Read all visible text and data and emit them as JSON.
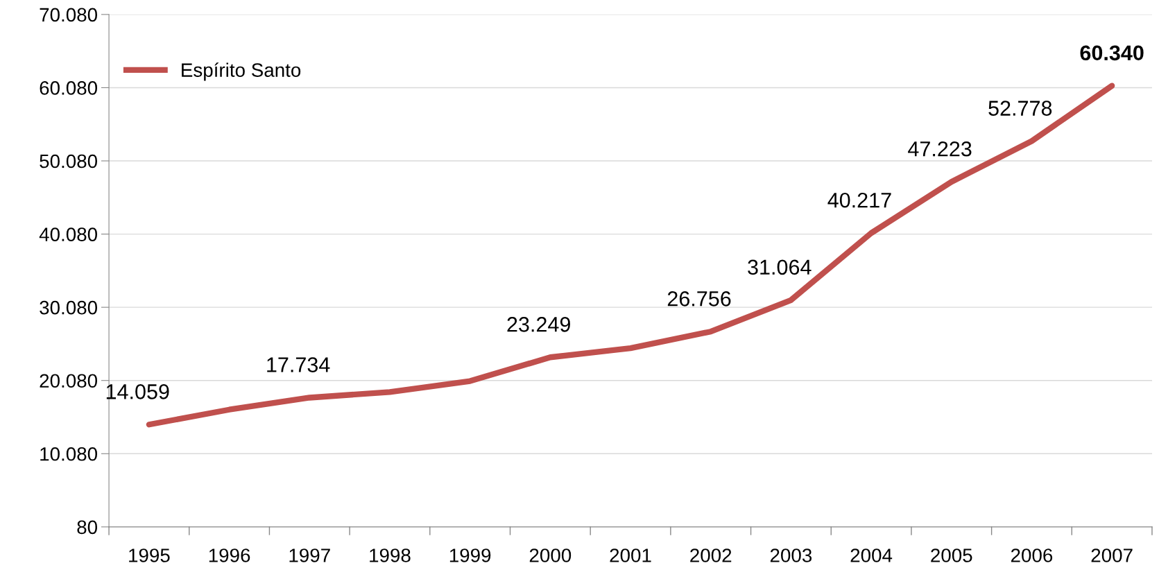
{
  "chart_data": {
    "type": "line",
    "categories": [
      "1995",
      "1996",
      "1997",
      "1998",
      "1999",
      "2000",
      "2001",
      "2002",
      "2003",
      "2004",
      "2005",
      "2006",
      "2007"
    ],
    "series": [
      {
        "name": "Espírito Santo",
        "color": "#c0504d",
        "values": [
          14059,
          16100,
          17734,
          18500,
          20000,
          23249,
          24500,
          26756,
          31064,
          40217,
          47223,
          52778,
          60340
        ],
        "value_labels": [
          "14.059",
          null,
          "17.734",
          null,
          null,
          "23.249",
          null,
          "26.756",
          "31.064",
          "40.217",
          "47.223",
          "52.778",
          "60.340"
        ]
      }
    ],
    "ylim": [
      80,
      70080
    ],
    "yticks": [
      {
        "value": 80,
        "label": "80"
      },
      {
        "value": 10080,
        "label": "10.080"
      },
      {
        "value": 20080,
        "label": "20.080"
      },
      {
        "value": 30080,
        "label": "30.080"
      },
      {
        "value": 40080,
        "label": "40.080"
      },
      {
        "value": 50080,
        "label": "50.080"
      },
      {
        "value": 60080,
        "label": "60.080"
      },
      {
        "value": 70080,
        "label": "70.080"
      }
    ],
    "grid": "y",
    "legend": "top left",
    "marker": "none",
    "line_style": "solid"
  }
}
